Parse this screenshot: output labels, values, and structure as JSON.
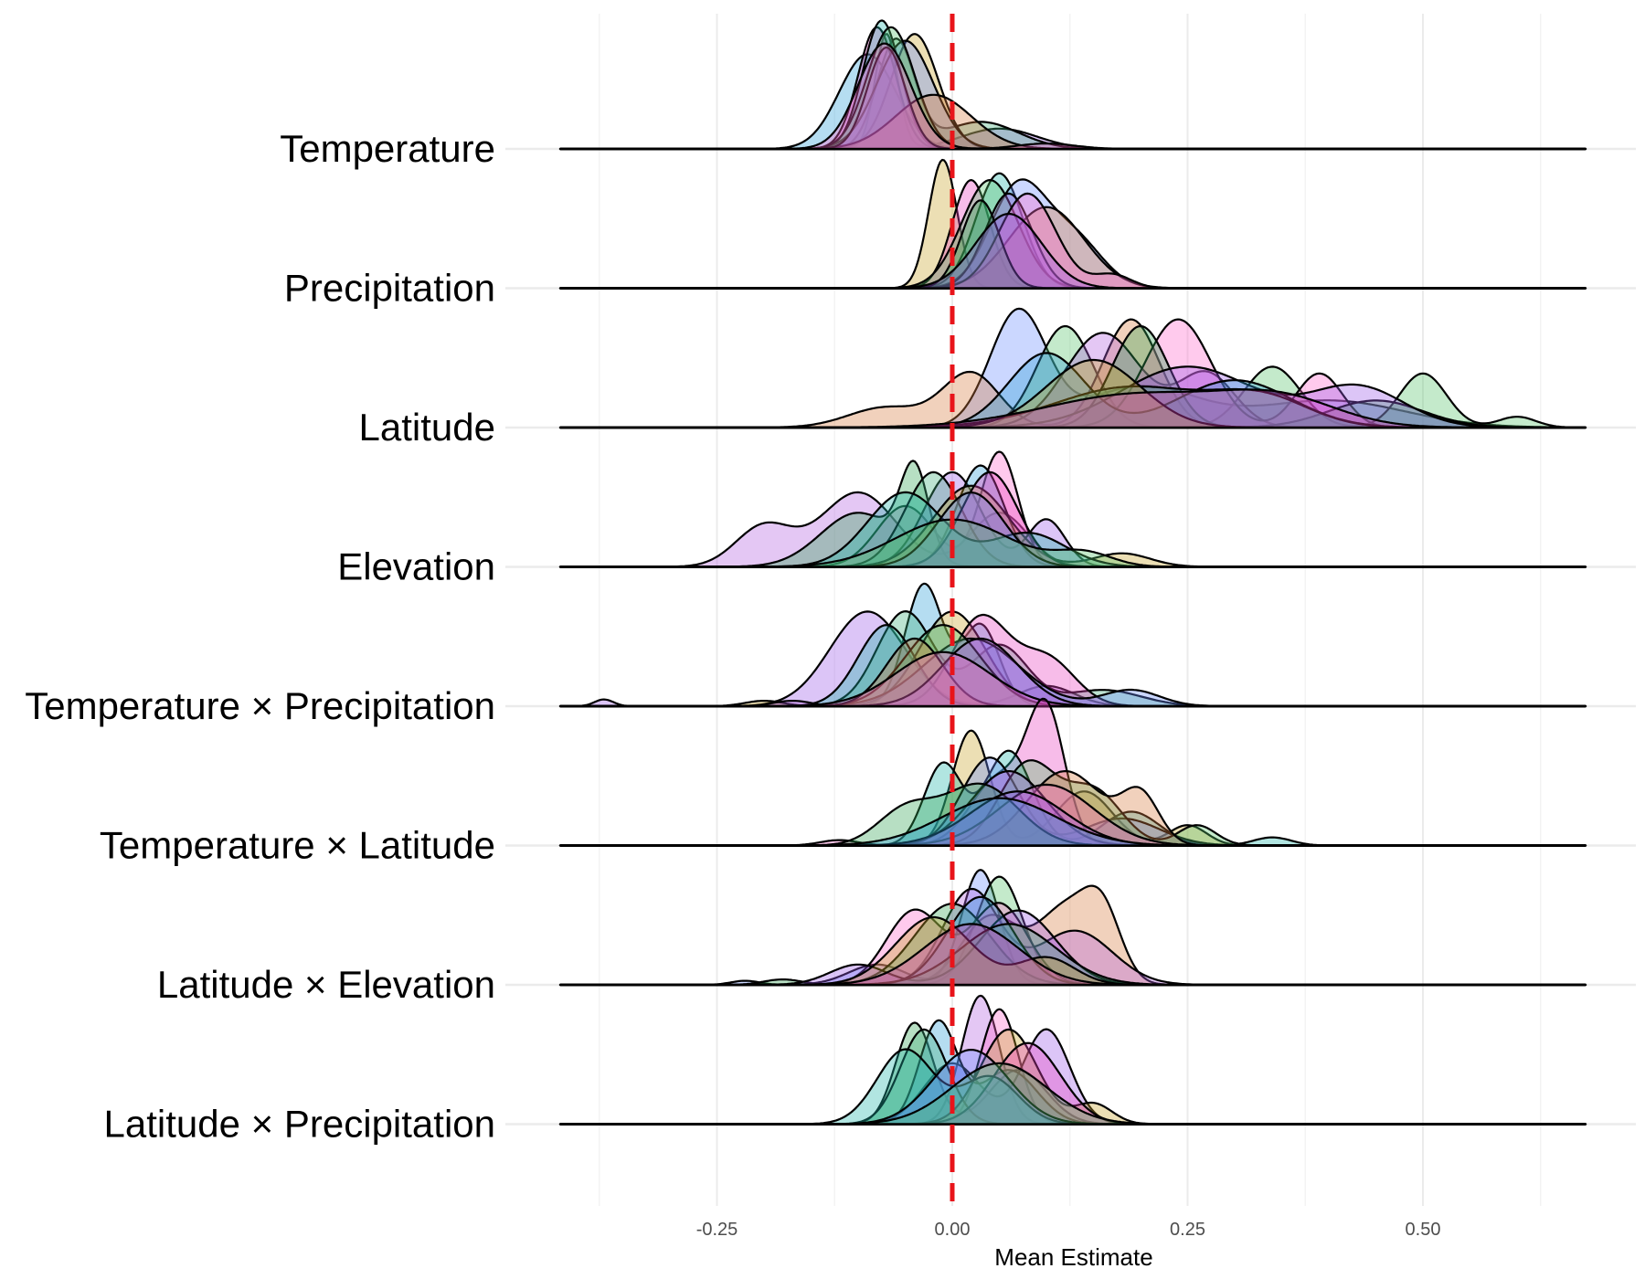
{
  "chart_data": {
    "type": "ridgeline",
    "title": "",
    "xlabel": "Mean Estimate",
    "ylabel": "",
    "xlim": [
      -0.42,
      0.67
    ],
    "x_ticks": [
      -0.25,
      0.0,
      0.25,
      0.5
    ],
    "x_tick_labels": [
      "-0.25",
      "0.00",
      "0.25",
      "0.50"
    ],
    "x_minor_ticks": [
      -0.375,
      -0.125,
      0.125,
      0.375,
      0.625
    ],
    "reference_line": {
      "x": 0.0,
      "color": "#e8141a",
      "style": "dashed"
    },
    "grid": true,
    "palette": [
      "#9b59e8",
      "#2a9fd6",
      "#3fb07a",
      "#c9a227",
      "#e83fbf",
      "#1fb5a8",
      "#6b8cff",
      "#55c46a",
      "#d67a3f",
      "#b35fe0",
      "#ff66cc",
      "#31a354"
    ],
    "categories": [
      "Temperature",
      "Precipitation",
      "Latitude",
      "Elevation",
      "Temperature × Precipitation",
      "Temperature × Latitude",
      "Latitude × Elevation",
      "Latitude × Precipitation"
    ],
    "rows": [
      {
        "label": "Temperature",
        "curves": [
          [
            [
              -0.07,
              0.012,
              0.85
            ],
            [
              0.05,
              0.04,
              0.15
            ]
          ],
          [
            [
              -0.09,
              0.03,
              0.7
            ]
          ],
          [
            [
              -0.06,
              0.02,
              0.8
            ],
            [
              0.03,
              0.04,
              0.2
            ]
          ],
          [
            [
              -0.04,
              0.025,
              0.85
            ]
          ],
          [
            [
              -0.08,
              0.02,
              0.9
            ]
          ],
          [
            [
              -0.075,
              0.02,
              0.95
            ]
          ],
          [
            [
              -0.05,
              0.03,
              0.8
            ]
          ],
          [
            [
              -0.065,
              0.025,
              0.9
            ]
          ],
          [
            [
              -0.02,
              0.04,
              0.4
            ]
          ],
          [
            [
              -0.07,
              0.02,
              0.75
            ]
          ],
          [
            [
              -0.072,
              0.028,
              0.78
            ],
            [
              0.1,
              0.03,
              0.04
            ]
          ]
        ]
      },
      {
        "label": "Precipitation",
        "curves": [
          [
            [
              -0.01,
              0.015,
              0.95
            ]
          ],
          [
            [
              0.02,
              0.02,
              0.8
            ]
          ],
          [
            [
              0.05,
              0.025,
              0.85
            ]
          ],
          [
            [
              0.07,
              0.03,
              0.75
            ],
            [
              0.13,
              0.03,
              0.35
            ]
          ],
          [
            [
              0.04,
              0.03,
              0.8
            ]
          ],
          [
            [
              0.1,
              0.04,
              0.6
            ]
          ],
          [
            [
              0.06,
              0.025,
              0.7
            ]
          ],
          [
            [
              0.08,
              0.03,
              0.7
            ],
            [
              0.17,
              0.02,
              0.1
            ]
          ],
          [
            [
              0.03,
              0.02,
              0.65
            ]
          ],
          [
            [
              0.06,
              0.035,
              0.55
            ]
          ]
        ]
      },
      {
        "label": "Latitude",
        "curves": [
          [
            [
              0.07,
              0.03,
              0.85
            ],
            [
              0.2,
              0.06,
              0.3
            ],
            [
              0.4,
              0.08,
              0.2
            ]
          ],
          [
            [
              0.12,
              0.03,
              0.75
            ],
            [
              0.34,
              0.03,
              0.45
            ],
            [
              0.5,
              0.025,
              0.4
            ],
            [
              0.6,
              0.02,
              0.08
            ]
          ],
          [
            [
              0.19,
              0.03,
              0.8
            ],
            [
              0.02,
              0.03,
              0.4
            ],
            [
              -0.07,
              0.04,
              0.15
            ]
          ],
          [
            [
              0.16,
              0.04,
              0.7
            ],
            [
              0.27,
              0.03,
              0.4
            ]
          ],
          [
            [
              0.24,
              0.035,
              0.8
            ],
            [
              0.39,
              0.025,
              0.4
            ]
          ],
          [
            [
              0.2,
              0.03,
              0.75
            ],
            [
              0.45,
              0.05,
              0.2
            ]
          ],
          [
            [
              0.25,
              0.07,
              0.45
            ],
            [
              0.43,
              0.05,
              0.3
            ]
          ],
          [
            [
              0.1,
              0.04,
              0.55
            ],
            [
              0.3,
              0.06,
              0.35
            ]
          ],
          [
            [
              0.19,
              0.08,
              0.3
            ],
            [
              0.33,
              0.05,
              0.2
            ]
          ],
          [
            [
              0.15,
              0.05,
              0.5
            ]
          ],
          [
            [
              0.2,
              0.1,
              0.25
            ],
            [
              0.35,
              0.06,
              0.18
            ]
          ]
        ]
      },
      {
        "label": "Elevation",
        "curves": [
          [
            [
              -0.1,
              0.04,
              0.55
            ],
            [
              -0.2,
              0.03,
              0.3
            ],
            [
              0.05,
              0.03,
              0.4
            ]
          ],
          [
            [
              0.05,
              0.02,
              0.85
            ],
            [
              -0.05,
              0.03,
              0.45
            ]
          ],
          [
            [
              -0.04,
              0.015,
              0.65
            ],
            [
              -0.1,
              0.04,
              0.4
            ]
          ],
          [
            [
              0.0,
              0.03,
              0.7
            ],
            [
              0.1,
              0.02,
              0.35
            ]
          ],
          [
            [
              0.03,
              0.025,
              0.75
            ]
          ],
          [
            [
              -0.02,
              0.03,
              0.7
            ]
          ],
          [
            [
              0.02,
              0.04,
              0.6
            ],
            [
              0.18,
              0.03,
              0.1
            ]
          ],
          [
            [
              0.04,
              0.03,
              0.7
            ]
          ],
          [
            [
              -0.05,
              0.04,
              0.55
            ],
            [
              0.08,
              0.04,
              0.25
            ]
          ],
          [
            [
              0.02,
              0.035,
              0.55
            ]
          ],
          [
            [
              0.0,
              0.06,
              0.35
            ],
            [
              0.14,
              0.03,
              0.1
            ]
          ]
        ]
      },
      {
        "label": "Temperature × Precipitation",
        "curves": [
          [
            [
              -0.09,
              0.04,
              0.7
            ],
            [
              -0.37,
              0.01,
              0.05
            ],
            [
              0.1,
              0.03,
              0.15
            ]
          ],
          [
            [
              -0.03,
              0.02,
              0.9
            ],
            [
              0.03,
              0.02,
              0.6
            ]
          ],
          [
            [
              -0.05,
              0.03,
              0.7
            ],
            [
              0.05,
              0.03,
              0.45
            ],
            [
              0.16,
              0.04,
              0.12
            ]
          ],
          [
            [
              0.0,
              0.035,
              0.7
            ],
            [
              -0.2,
              0.02,
              0.04
            ]
          ],
          [
            [
              0.03,
              0.03,
              0.65
            ],
            [
              0.1,
              0.03,
              0.35
            ]
          ],
          [
            [
              -0.07,
              0.03,
              0.6
            ]
          ],
          [
            [
              0.02,
              0.05,
              0.5
            ],
            [
              0.19,
              0.03,
              0.12
            ]
          ],
          [
            [
              -0.01,
              0.04,
              0.6
            ]
          ],
          [
            [
              -0.04,
              0.03,
              0.5
            ]
          ],
          [
            [
              0.03,
              0.04,
              0.5
            ],
            [
              -0.17,
              0.02,
              0.04
            ]
          ],
          [
            [
              -0.01,
              0.05,
              0.4
            ]
          ]
        ]
      },
      {
        "label": "Temperature × Latitude",
        "curves": [
          [
            [
              0.02,
              0.02,
              0.85
            ],
            [
              0.14,
              0.03,
              0.4
            ],
            [
              0.25,
              0.02,
              0.15
            ]
          ],
          [
            [
              0.1,
              0.02,
              0.95
            ],
            [
              0.05,
              0.03,
              0.5
            ]
          ],
          [
            [
              0.06,
              0.025,
              0.7
            ],
            [
              -0.01,
              0.02,
              0.6
            ],
            [
              0.19,
              0.03,
              0.25
            ],
            [
              0.34,
              0.02,
              0.06
            ]
          ],
          [
            [
              0.04,
              0.03,
              0.65
            ],
            [
              0.18,
              0.04,
              0.2
            ]
          ],
          [
            [
              0.08,
              0.03,
              0.6
            ],
            [
              0.15,
              0.03,
              0.4
            ],
            [
              0.26,
              0.02,
              0.15
            ]
          ],
          [
            [
              0.12,
              0.04,
              0.55
            ],
            [
              0.2,
              0.02,
              0.35
            ]
          ],
          [
            [
              0.06,
              0.04,
              0.55
            ]
          ],
          [
            [
              0.1,
              0.05,
              0.45
            ],
            [
              -0.12,
              0.02,
              0.04
            ]
          ],
          [
            [
              0.03,
              0.04,
              0.45
            ],
            [
              -0.05,
              0.03,
              0.25
            ]
          ],
          [
            [
              0.07,
              0.05,
              0.4
            ]
          ],
          [
            [
              0.05,
              0.06,
              0.35
            ]
          ]
        ]
      },
      {
        "label": "Latitude × Elevation",
        "curves": [
          [
            [
              0.03,
              0.02,
              0.85
            ],
            [
              -0.08,
              0.03,
              0.15
            ],
            [
              -0.22,
              0.015,
              0.03
            ]
          ],
          [
            [
              0.05,
              0.025,
              0.8
            ]
          ],
          [
            [
              0.12,
              0.03,
              0.55
            ],
            [
              0.16,
              0.02,
              0.45
            ],
            [
              0.04,
              0.03,
              0.5
            ]
          ],
          [
            [
              0.02,
              0.03,
              0.7
            ],
            [
              0.13,
              0.04,
              0.4
            ]
          ],
          [
            [
              -0.04,
              0.03,
              0.55
            ],
            [
              0.05,
              0.03,
              0.6
            ]
          ],
          [
            [
              0.0,
              0.04,
              0.6
            ],
            [
              -0.18,
              0.02,
              0.04
            ]
          ],
          [
            [
              0.07,
              0.04,
              0.55
            ],
            [
              -0.1,
              0.03,
              0.15
            ]
          ],
          [
            [
              0.03,
              0.035,
              0.65
            ]
          ],
          [
            [
              0.06,
              0.05,
              0.45
            ]
          ],
          [
            [
              -0.02,
              0.04,
              0.5
            ],
            [
              0.1,
              0.03,
              0.2
            ]
          ],
          [
            [
              0.02,
              0.05,
              0.45
            ]
          ]
        ]
      },
      {
        "label": "Latitude × Precipitation",
        "curves": [
          [
            [
              0.03,
              0.02,
              0.95
            ]
          ],
          [
            [
              0.05,
              0.02,
              0.85
            ]
          ],
          [
            [
              -0.04,
              0.02,
              0.75
            ],
            [
              0.07,
              0.03,
              0.4
            ]
          ],
          [
            [
              0.1,
              0.025,
              0.7
            ],
            [
              0.0,
              0.03,
              0.45
            ]
          ],
          [
            [
              -0.015,
              0.02,
              0.75
            ],
            [
              0.06,
              0.03,
              0.4
            ]
          ],
          [
            [
              -0.03,
              0.025,
              0.7
            ]
          ],
          [
            [
              0.06,
              0.03,
              0.7
            ],
            [
              0.15,
              0.02,
              0.15
            ]
          ],
          [
            [
              0.08,
              0.035,
              0.6
            ]
          ],
          [
            [
              -0.05,
              0.03,
              0.55
            ],
            [
              0.04,
              0.03,
              0.35
            ]
          ],
          [
            [
              0.02,
              0.04,
              0.55
            ]
          ],
          [
            [
              0.05,
              0.05,
              0.45
            ]
          ]
        ]
      }
    ]
  }
}
